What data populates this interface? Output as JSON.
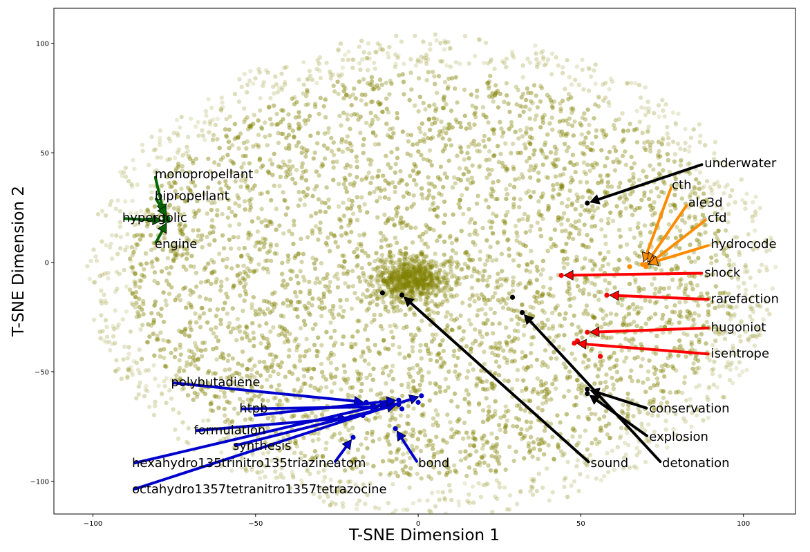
{
  "chart_data": {
    "type": "scatter",
    "title": "",
    "xlabel": "T-SNE Dimension 1",
    "ylabel": "T-SNE Dimension 2",
    "xlim": [
      -112,
      116
    ],
    "ylim": [
      -115,
      116
    ],
    "xticks": [
      -100,
      -50,
      0,
      50,
      100
    ],
    "yticks": [
      -100,
      -50,
      0,
      50,
      100
    ],
    "grid": false,
    "background_point_color": "#808000",
    "background_description": "Dense cloud of several thousand olive word-embedding points, densest near (-2,-8), thinning toward an elliptical boundary",
    "group_colors": {
      "propulsion": "#006400",
      "hydrocode": "#ff8c00",
      "shock": "#ff0000",
      "energetics": "#0000cd",
      "general": "#000000"
    },
    "annotations": [
      {
        "label": "monopropellant",
        "group": "propulsion",
        "point": [
          -78,
          21
        ],
        "text": [
          -81,
          40
        ]
      },
      {
        "label": "bipropellant",
        "group": "propulsion",
        "point": [
          -77,
          20
        ],
        "text": [
          -81,
          30
        ]
      },
      {
        "label": "hypergolic",
        "group": "propulsion",
        "point": [
          -78,
          19
        ],
        "text": [
          -91,
          20
        ]
      },
      {
        "label": "engine",
        "group": "propulsion",
        "point": [
          -77,
          19
        ],
        "text": [
          -81,
          8
        ]
      },
      {
        "label": "underwater",
        "group": "general",
        "point": [
          52,
          27
        ],
        "text": [
          88,
          45
        ]
      },
      {
        "label": "cth",
        "group": "hydrocode",
        "point": [
          69,
          -1
        ],
        "text": [
          78,
          35
        ]
      },
      {
        "label": "ale3d",
        "group": "hydrocode",
        "point": [
          70,
          -1
        ],
        "text": [
          83,
          27
        ]
      },
      {
        "label": "cfd",
        "group": "hydrocode",
        "point": [
          70,
          -2
        ],
        "text": [
          89,
          20
        ]
      },
      {
        "label": "hydrocode",
        "group": "hydrocode",
        "point": [
          70,
          -1
        ],
        "text": [
          90,
          8
        ]
      },
      {
        "label": "shock",
        "group": "shock",
        "point": [
          44,
          -6
        ],
        "text": [
          88,
          -5
        ]
      },
      {
        "label": "rarefaction",
        "group": "shock",
        "point": [
          58,
          -15
        ],
        "text": [
          90,
          -17
        ]
      },
      {
        "label": "hugoniot",
        "group": "shock",
        "point": [
          52,
          -32
        ],
        "text": [
          90,
          -30
        ]
      },
      {
        "label": "isentrope",
        "group": "shock",
        "point": [
          48,
          -37
        ],
        "text": [
          90,
          -42
        ]
      },
      {
        "label": "conservation",
        "group": "general",
        "point": [
          52,
          -58
        ],
        "text": [
          71,
          -67
        ]
      },
      {
        "label": "explosion",
        "group": "general",
        "point": [
          52,
          -60
        ],
        "text": [
          71,
          -80
        ]
      },
      {
        "label": "sound",
        "group": "general",
        "point": [
          -5,
          -15
        ],
        "text": [
          53,
          -92
        ]
      },
      {
        "label": "detonation",
        "group": "general",
        "point": [
          32,
          -23
        ],
        "text": [
          75,
          -92
        ]
      },
      {
        "label": "polybutadiene",
        "group": "energetics",
        "point": [
          -16,
          -64
        ],
        "text": [
          -76,
          -55
        ]
      },
      {
        "label": "htpb",
        "group": "energetics",
        "point": [
          -11,
          -66
        ],
        "text": [
          -55,
          -67
        ]
      },
      {
        "label": "formulation",
        "group": "energetics",
        "point": [
          -21,
          -71
        ],
        "text": [
          -69,
          -77
        ]
      },
      {
        "label": "synthesis",
        "group": "energetics",
        "point": [
          -6,
          -65
        ],
        "text": [
          -57,
          -84
        ]
      },
      {
        "label": "hexahydro135trinitro135triazine",
        "group": "energetics",
        "point": [
          -8,
          -64
        ],
        "text": [
          -88,
          -92
        ]
      },
      {
        "label": "atom",
        "group": "energetics",
        "point": [
          -20,
          -80
        ],
        "text": [
          -26,
          -92
        ]
      },
      {
        "label": "bond",
        "group": "energetics",
        "point": [
          -7,
          -76
        ],
        "text": [
          0,
          -92
        ]
      },
      {
        "label": "octahydro1357tetranitro1357tetrazocine",
        "group": "energetics",
        "point": [
          1,
          -61
        ],
        "text": [
          -88,
          -104
        ]
      },
      {
        "label": "",
        "group": "energetics",
        "point": [
          -6,
          -63
        ],
        "text": [
          -51,
          -70
        ]
      },
      {
        "label": "",
        "group": "general",
        "point": [
          -11,
          -14
        ],
        "text": null
      },
      {
        "label": "",
        "group": "general",
        "point": [
          29,
          -16
        ],
        "text": null
      },
      {
        "label": "",
        "group": "shock",
        "point": [
          49,
          -36
        ],
        "text": null
      },
      {
        "label": "",
        "group": "shock",
        "point": [
          56,
          -43
        ],
        "text": null
      },
      {
        "label": "",
        "group": "hydrocode",
        "point": [
          65,
          -2
        ],
        "text": null
      },
      {
        "label": "",
        "group": "energetics",
        "point": [
          -17,
          -70
        ],
        "text": null
      },
      {
        "label": "",
        "group": "energetics",
        "point": [
          0,
          -64
        ],
        "text": null
      },
      {
        "label": "",
        "group": "energetics",
        "point": [
          -5,
          -67
        ],
        "text": null
      }
    ]
  }
}
